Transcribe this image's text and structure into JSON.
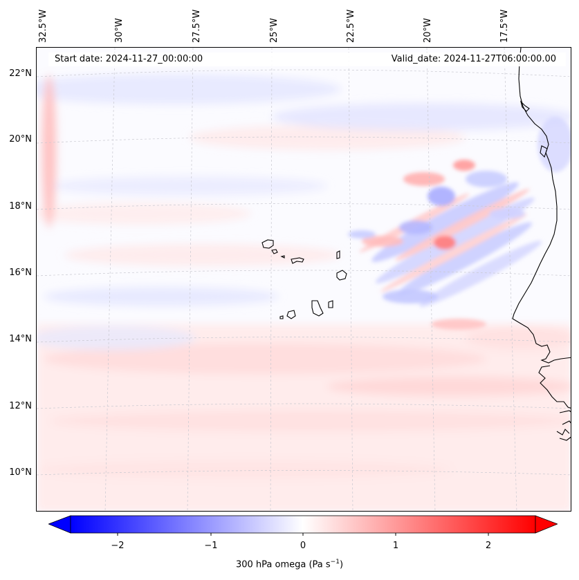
{
  "header": {
    "start_date": "Start date: 2024-11-27_00:00:00",
    "valid_date": "Valid_date: 2024-11-27T06:00:00.00"
  },
  "axes": {
    "lat_labels": [
      "22°N",
      "20°N",
      "18°N",
      "16°N",
      "14°N",
      "12°N",
      "10°N"
    ],
    "lat_values": [
      22,
      20,
      18,
      16,
      14,
      12,
      10
    ],
    "lon_labels": [
      "32.5°W",
      "30°W",
      "27.5°W",
      "25°W",
      "22.5°W",
      "20°W",
      "17.5°W"
    ],
    "lon_values": [
      -32.5,
      -30,
      -27.5,
      -25,
      -22.5,
      -20,
      -17.5
    ]
  },
  "colorbar": {
    "label_text": "300 hPa omega (Pa s",
    "label_sup": "−1",
    "label_close": ")",
    "ticks": [
      "−2",
      "−1",
      "0",
      "1",
      "2"
    ],
    "tick_values": [
      -2,
      -1,
      0,
      1,
      2
    ],
    "range": [
      -2.6,
      2.6
    ],
    "extend": "both",
    "cmap_colors": [
      "#0000ff",
      "#ffffff",
      "#ff0000"
    ]
  },
  "map": {
    "field": "300 hPa omega",
    "coastline_color": "#000000",
    "gridline_color": "#c8c8d0"
  }
}
